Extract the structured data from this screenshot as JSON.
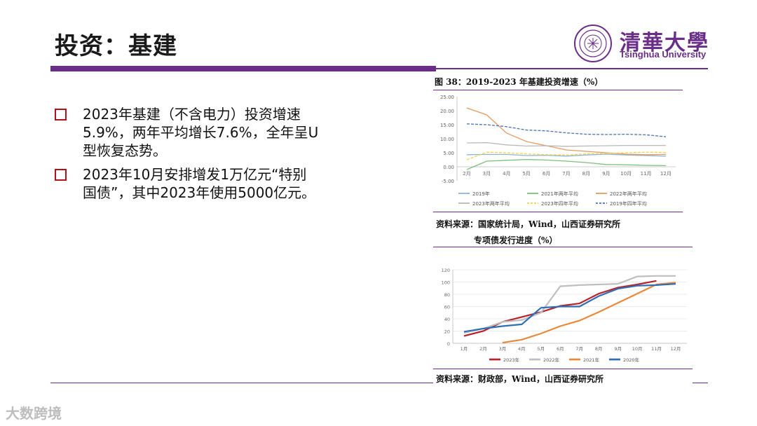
{
  "slide": {
    "title": "投资：基建"
  },
  "logo": {
    "cn": "清華大學",
    "en": "Tsinghua University",
    "seal_text": "1911 TSINGHUA"
  },
  "bullets": [
    "2023年基建（不含电力）投资增速5.9%，两年平均增长7.6%，全年呈U型恢复态势。",
    "2023年10月安排增发1万亿元“特别国债”，其中2023年使用5000亿元。"
  ],
  "figure1": {
    "caption": "图 38：2019-2023 年基建投资增速（%）",
    "source": "资料来源：国家统计局，Wind，山西证券研究所"
  },
  "figure2": {
    "caption": "专项债发行进度（%）",
    "source": "资料来源：财政部，Wind，山西证券研究所"
  },
  "watermark": "大数跨境",
  "colors": {
    "accent": "#6b2e88",
    "bullet": "#b0121b"
  },
  "chart_data": [
    {
      "type": "line",
      "title": "图 38：2019-2023 年基建投资增速（%）",
      "categories": [
        "2月",
        "3月",
        "4月",
        "5月",
        "6月",
        "7月",
        "8月",
        "9月",
        "10月",
        "11月",
        "12月"
      ],
      "yticks": [
        "25.00",
        "20.00",
        "15.00",
        "10.00",
        "5.00",
        "0.00",
        "-5.00"
      ],
      "ylim": [
        -5,
        25
      ],
      "legend_position": "bottom",
      "series": [
        {
          "name": "2019年",
          "color": "#8fb4d6",
          "dash": "solid",
          "values": [
            4.3,
            4.4,
            4.4,
            4.0,
            4.1,
            3.8,
            4.2,
            4.5,
            4.2,
            4.0,
            3.8
          ]
        },
        {
          "name": "2021年两年平均",
          "color": "#7cc07c",
          "dash": "solid",
          "values": [
            -1.0,
            2.0,
            2.3,
            2.6,
            2.4,
            2.0,
            1.5,
            0.8,
            0.7,
            0.5,
            0.4
          ]
        },
        {
          "name": "2022年两年平均",
          "color": "#e59a60",
          "dash": "solid",
          "values": [
            21.0,
            18.5,
            12.0,
            9.0,
            7.5,
            6.0,
            5.5,
            5.0,
            4.5,
            4.3,
            4.4
          ]
        },
        {
          "name": "2023年两年平均",
          "color": "#b8b8b8",
          "dash": "solid",
          "values": [
            8.5,
            8.6,
            7.8,
            7.4,
            7.5,
            7.3,
            7.4,
            7.5,
            7.6,
            7.6,
            7.6
          ]
        },
        {
          "name": "2023年四年平均",
          "color": "#f0d24a",
          "dash": "dashed",
          "values": [
            2.5,
            5.2,
            5.0,
            4.6,
            4.3,
            4.2,
            4.6,
            4.8,
            5.0,
            5.2,
            5.1
          ]
        },
        {
          "name": "2019年四年平均",
          "color": "#4a73b8",
          "dash": "dashed",
          "values": [
            15.3,
            15.0,
            14.3,
            13.1,
            12.8,
            12.1,
            11.6,
            11.5,
            11.6,
            11.4,
            10.7
          ]
        }
      ]
    },
    {
      "type": "line",
      "title": "专项债发行进度（%）",
      "categories": [
        "1月",
        "2月",
        "3月",
        "4月",
        "5月",
        "6月",
        "7月",
        "8月",
        "9月",
        "10月",
        "11月",
        "12月"
      ],
      "yticks": [
        "120",
        "100",
        "80",
        "60",
        "40",
        "20",
        "0"
      ],
      "ylim": [
        0,
        120
      ],
      "legend_position": "bottom",
      "series": [
        {
          "name": "2023年",
          "color": "#b8232b",
          "values": [
            12,
            20,
            35,
            43,
            51,
            61,
            65,
            81,
            91,
            96,
            102,
            null
          ]
        },
        {
          "name": "2022年",
          "color": "#bfbfbf",
          "values": [
            17,
            24,
            35,
            38,
            50,
            93,
            95,
            96,
            97,
            109,
            110,
            110
          ]
        },
        {
          "name": "2021年",
          "color": "#e8893a",
          "values": [
            null,
            null,
            1,
            6,
            16,
            28,
            37,
            51,
            66,
            81,
            96,
            99
          ]
        },
        {
          "name": "2020年",
          "color": "#2f6fb5",
          "values": [
            19,
            24,
            28,
            31,
            58,
            60,
            60,
            77,
            89,
            94,
            95,
            97
          ]
        }
      ]
    }
  ]
}
